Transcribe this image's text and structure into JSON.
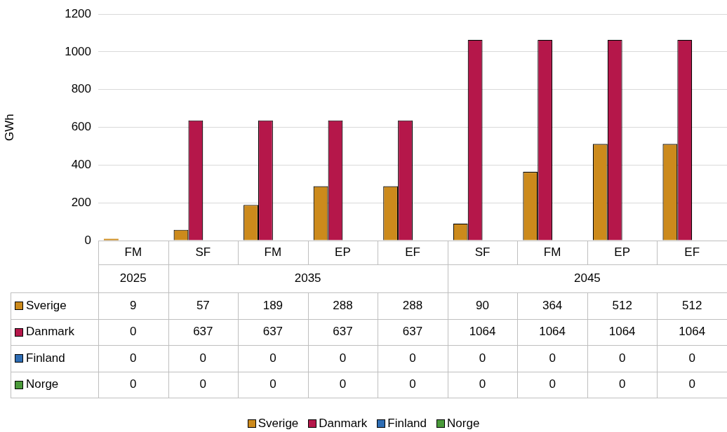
{
  "chart_data": {
    "type": "bar",
    "ylabel": "GWh",
    "categories": [
      "FM",
      "SF",
      "FM",
      "EP",
      "EF",
      "SF",
      "FM",
      "EP",
      "EF"
    ],
    "series": [
      {
        "name": "Sverige",
        "color": "#cc8a1c",
        "values": [
          9,
          57,
          189,
          288,
          288,
          90,
          364,
          512,
          512
        ]
      },
      {
        "name": "Danmark",
        "color": "#b5174a",
        "values": [
          0,
          637,
          637,
          637,
          637,
          1064,
          1064,
          1064,
          1064
        ]
      },
      {
        "name": "Finland",
        "color": "#2e6db4",
        "values": [
          0,
          0,
          0,
          0,
          0,
          0,
          0,
          0,
          0
        ]
      },
      {
        "name": "Norge",
        "color": "#4a9a3a",
        "values": [
          0,
          0,
          0,
          0,
          0,
          0,
          0,
          0,
          0
        ]
      }
    ],
    "annotations": [
      "2025",
      "2035",
      "2045"
    ],
    "ylim": [
      0,
      1200
    ],
    "yticks": [
      0,
      200,
      400,
      600,
      800,
      1000,
      1200
    ],
    "grid": "y",
    "legend": "bottom",
    "data_labels": true
  }
}
